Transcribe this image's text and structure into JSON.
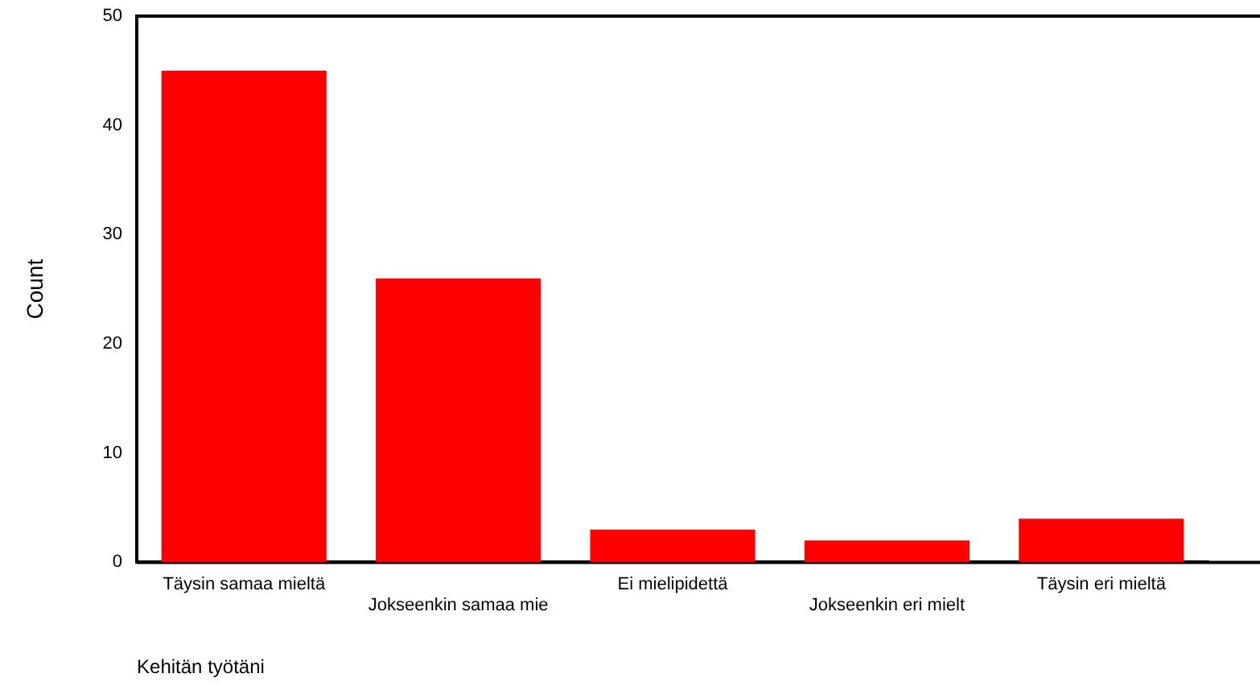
{
  "chart_data": {
    "type": "bar",
    "ylabel": "Count",
    "xlabel": "Kehitän työtäni",
    "categories": [
      "Täysin samaa mieltä",
      "Jokseenkin samaa mie",
      "Ei mielipidettä",
      "Jokseenkin eri mielt",
      "Täysin eri mieltä"
    ],
    "values": [
      45,
      26,
      3,
      2,
      4
    ],
    "color": "#ff0000",
    "ylim": [
      0,
      50
    ],
    "yticks": [
      0,
      10,
      20,
      30,
      40,
      50
    ],
    "grid": false,
    "legend": false
  }
}
